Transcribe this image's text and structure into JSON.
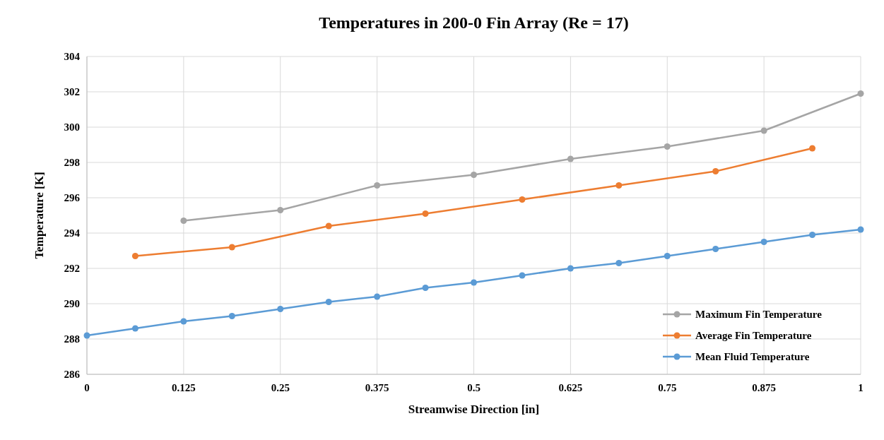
{
  "chart_data": {
    "type": "line",
    "title": "Temperatures  in 200-0 Fin Array  (Re = 17)",
    "xlabel": "Streamwise Direction  [in]",
    "ylabel": "Temperature  [K]",
    "xlim": [
      0,
      1
    ],
    "xticks": [
      0,
      0.125,
      0.25,
      0.375,
      0.5,
      0.625,
      0.75,
      0.875,
      1
    ],
    "ylim": [
      286,
      304
    ],
    "yticks": [
      286,
      288,
      290,
      292,
      294,
      296,
      298,
      300,
      302,
      304
    ],
    "grid": true,
    "legend": "bottom right",
    "marker": "circle",
    "line_style": "solid",
    "series": [
      {
        "name": "Maximum Fin Temperature",
        "color": "#a5a5a5",
        "x": [
          0.125,
          0.25,
          0.375,
          0.5,
          0.625,
          0.75,
          0.875,
          1
        ],
        "values": [
          294.7,
          295.3,
          296.7,
          297.3,
          298.2,
          298.9,
          299.8,
          301.9
        ]
      },
      {
        "name": "Average Fin Temperature",
        "color": "#ed7d31",
        "x": [
          0.0625,
          0.1875,
          0.3125,
          0.4375,
          0.5625,
          0.6875,
          0.8125,
          0.9375
        ],
        "values": [
          292.7,
          293.2,
          294.4,
          295.1,
          295.9,
          296.7,
          297.5,
          298.8
        ]
      },
      {
        "name": "Mean Fluid Temperature",
        "color": "#5b9bd5",
        "x": [
          0,
          0.0625,
          0.125,
          0.1875,
          0.25,
          0.3125,
          0.375,
          0.4375,
          0.5,
          0.5625,
          0.625,
          0.6875,
          0.75,
          0.8125,
          0.875,
          0.9375,
          1
        ],
        "values": [
          288.2,
          288.6,
          289.0,
          289.3,
          289.7,
          290.1,
          290.4,
          290.9,
          291.2,
          291.6,
          292.0,
          292.3,
          292.7,
          293.1,
          293.5,
          293.9,
          294.2
        ]
      }
    ]
  }
}
